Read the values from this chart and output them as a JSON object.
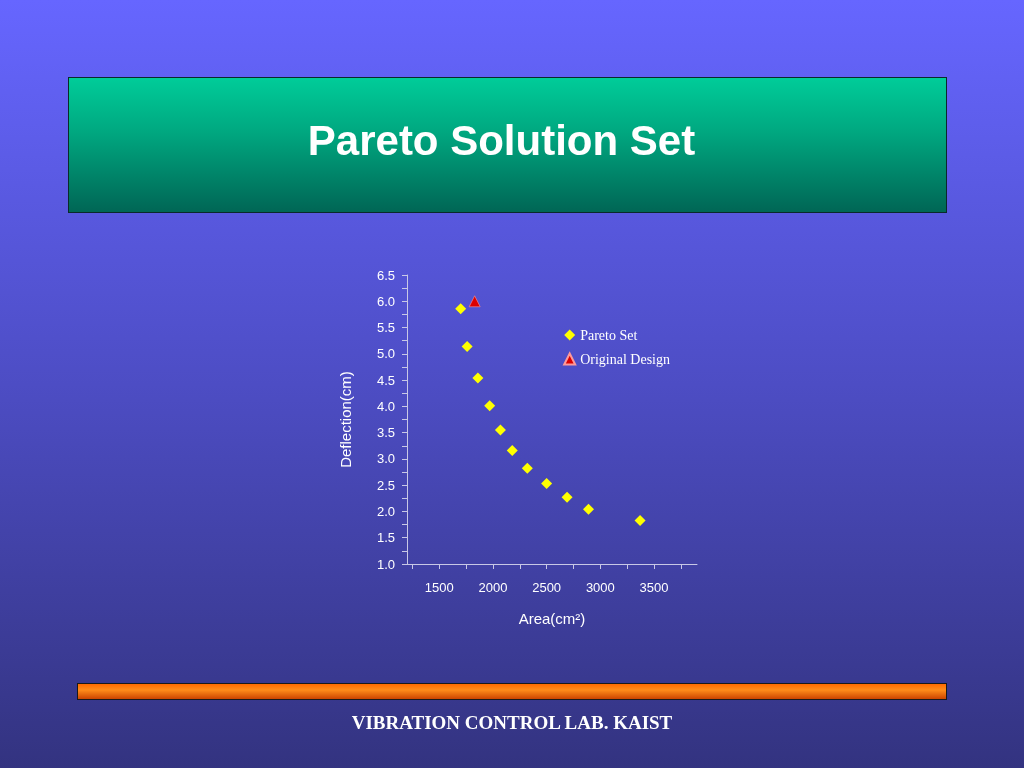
{
  "chart_data": {
    "type": "scatter",
    "title": "Pareto Solution Set",
    "xlabel": "Area(cm²)",
    "ylabel": "Deflection(cm)",
    "annotations": [
      "VIBRATION CONTROL LAB. KAIST"
    ],
    "series": [
      {
        "name": "Pareto Set",
        "color": "#ffff00",
        "marker": "diamond",
        "x": [
          1700,
          1760,
          1860,
          1970,
          2070,
          2180,
          2320,
          2500,
          2690,
          2890,
          3370
        ],
        "values": [
          5.86,
          5.14,
          4.54,
          4.01,
          3.55,
          3.16,
          2.82,
          2.53,
          2.27,
          2.04,
          1.83
        ]
      },
      {
        "name": "Original Design",
        "color": "#dd0000",
        "marker": "triangle",
        "x": [
          1830
        ],
        "values": [
          6.0
        ]
      }
    ],
    "xlim": [
      1200,
      3900
    ],
    "xticks": [
      {
        "value": 1250,
        "label": null
      },
      1500,
      {
        "value": 1750,
        "label": null
      },
      2000,
      {
        "value": 2250,
        "label": null
      },
      2500,
      {
        "value": 2750,
        "label": null
      },
      3000,
      {
        "value": 3250,
        "label": null
      },
      3500,
      {
        "value": 3750,
        "label": null
      }
    ],
    "ylim": [
      1,
      6.5
    ],
    "yticks": [
      {
        "value": 1,
        "label": "1.0"
      },
      {
        "value": 1.25,
        "label": null
      },
      1.5,
      {
        "value": 1.75,
        "label": null
      },
      {
        "value": 2,
        "label": "2.0"
      },
      {
        "value": 2.25,
        "label": null
      },
      2.5,
      {
        "value": 2.75,
        "label": null
      },
      {
        "value": 3,
        "label": "3.0"
      },
      {
        "value": 3.25,
        "label": null
      },
      3.5,
      {
        "value": 3.75,
        "label": null
      },
      {
        "value": 4,
        "label": "4.0"
      },
      {
        "value": 4.25,
        "label": null
      },
      4.5,
      {
        "value": 4.75,
        "label": null
      },
      {
        "value": 5,
        "label": "5.0"
      },
      {
        "value": 5.25,
        "label": null
      },
      5.5,
      {
        "value": 5.75,
        "label": null
      },
      {
        "value": 6,
        "label": "6.0"
      },
      {
        "value": 6.25,
        "label": null
      },
      6.5
    ],
    "legend": "top right",
    "grid": false
  }
}
